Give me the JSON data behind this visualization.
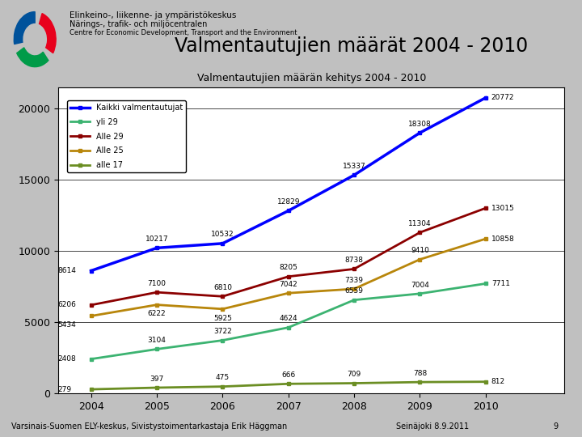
{
  "title_main": "Valmentautujien määrät 2004 - 2010",
  "chart_title": "Valmentautujien määrän kehitys 2004 - 2010",
  "years": [
    2004,
    2005,
    2006,
    2007,
    2008,
    2009,
    2010
  ],
  "series": [
    {
      "label": "Kaikki valmentautujat",
      "color": "#0000FF",
      "linewidth": 2.5,
      "values": [
        8614,
        10217,
        10532,
        12829,
        15337,
        18308,
        20772
      ]
    },
    {
      "label": "yli 29",
      "color": "#3CB371",
      "linewidth": 2,
      "values": [
        2408,
        3104,
        3722,
        4624,
        6559,
        7004,
        7711
      ]
    },
    {
      "label": "Alle 29",
      "color": "#8B0000",
      "linewidth": 2,
      "values": [
        6206,
        7100,
        6810,
        8205,
        8738,
        11304,
        13015
      ]
    },
    {
      "label": "Alle 25",
      "color": "#B8860B",
      "linewidth": 2,
      "values": [
        5434,
        6222,
        5925,
        7042,
        7339,
        9410,
        10858
      ]
    },
    {
      "label": "alle 17",
      "color": "#6B8E23",
      "linewidth": 2,
      "values": [
        279,
        397,
        475,
        666,
        709,
        788,
        812
      ]
    }
  ],
  "ylim": [
    0,
    21500
  ],
  "yticks": [
    0,
    5000,
    10000,
    15000,
    20000
  ],
  "background_color": "#C0C0C0",
  "plot_bg_color": "#FFFFFF",
  "header_bg": "#FFFFFF",
  "footer_left": "Varsinais-Suomen ELY-keskus, Sivistystoimentarkastaja Erik Häggman",
  "footer_right": "Seinäjoki 8.9.2011",
  "footer_page": "9"
}
